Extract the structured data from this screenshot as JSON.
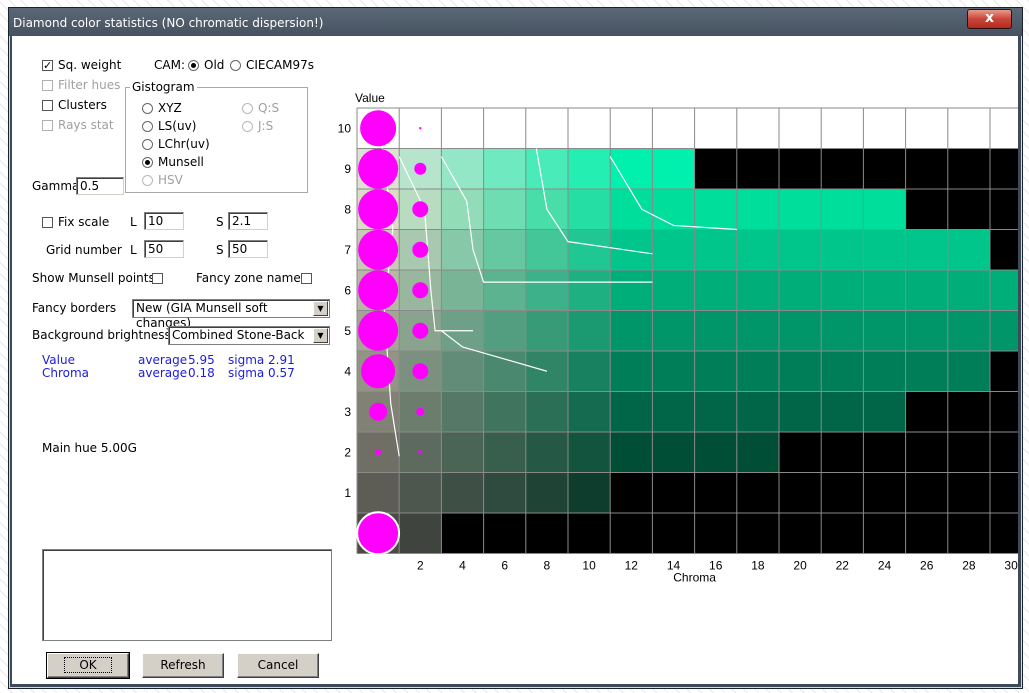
{
  "window": {
    "title": "Diamond color statistics (NO chromatic dispersion!)",
    "close_glyph": "x"
  },
  "options": {
    "sq_weight": {
      "label": "Sq. weight",
      "checked": true
    },
    "filter_hues": {
      "label": "Filter hues",
      "checked": false,
      "disabled": true
    },
    "clusters": {
      "label": "Clusters",
      "checked": false
    },
    "rays_stat": {
      "label": "Rays stat",
      "checked": false,
      "disabled": true
    }
  },
  "cam": {
    "label": "CAM:",
    "options": [
      "Old",
      "CIECAM97s"
    ],
    "selected": "Old"
  },
  "gistogram": {
    "title": "Gistogram",
    "options": [
      {
        "label": "XYZ",
        "selected": false,
        "disabled": false
      },
      {
        "label": "Q:S",
        "selected": false,
        "disabled": true
      },
      {
        "label": "LS(uv)",
        "selected": false,
        "disabled": false
      },
      {
        "label": "J:S",
        "selected": false,
        "disabled": true
      },
      {
        "label": "LChr(uv)",
        "selected": false,
        "disabled": false
      },
      {
        "label": "Munsell",
        "selected": true,
        "disabled": false
      },
      {
        "label": "HSV",
        "selected": false,
        "disabled": true
      }
    ]
  },
  "gamma": {
    "label": "Gamma",
    "value": "0.5"
  },
  "fix_scale": {
    "label": "Fix scale",
    "checked": false,
    "l_label": "L",
    "l_value": "10",
    "s_label": "S",
    "s_value": "2.1"
  },
  "grid_number": {
    "label": "Grid number",
    "l_label": "L",
    "l_value": "50",
    "s_label": "S",
    "s_value": "50"
  },
  "show_munsell_points": {
    "label": "Show Munsell points",
    "checked": false
  },
  "fancy_zone_names": {
    "label": "Fancy zone names",
    "checked": false
  },
  "fancy_borders": {
    "label": "Fancy borders",
    "value": "New (GIA Munsell soft changes)"
  },
  "background_brightness": {
    "label": "Background brightness",
    "value": "Combined Stone-Back"
  },
  "stats": {
    "value": {
      "label": "Value",
      "average_label": "average",
      "average": "5.95",
      "sigma_label": "sigma",
      "sigma": "2.91"
    },
    "chroma": {
      "label": "Chroma",
      "average_label": "average",
      "average": "0.18",
      "sigma_label": "sigma",
      "sigma": "0.57"
    }
  },
  "main_hue": "Main hue 5.00G",
  "buttons": {
    "ok": "OK",
    "refresh": "Refresh",
    "cancel": "Cancel"
  },
  "colors": {
    "marker": "#ff00ff",
    "grid": "#8a8a8a",
    "curve": "#ffffff"
  },
  "chart_data": {
    "type": "heatmap",
    "xlabel": "Chroma",
    "ylabel": "Value",
    "x_ticks": [
      "2",
      "4",
      "6",
      "8",
      "10",
      "12",
      "14",
      "16",
      "18",
      "20",
      "22",
      "24",
      "26",
      "28",
      "30"
    ],
    "y_ticks": [
      "1",
      "2",
      "3",
      "4",
      "5",
      "6",
      "7",
      "8",
      "9",
      "10"
    ],
    "xlim": [
      0,
      30
    ],
    "ylim": [
      0,
      10
    ],
    "grid": true,
    "rows": [
      {
        "value": 10,
        "last_chroma": 30,
        "color": "#ffffff"
      },
      {
        "value": 9,
        "last_chroma": 14,
        "color": "green"
      },
      {
        "value": 8,
        "last_chroma": 24,
        "color": "green"
      },
      {
        "value": 7,
        "last_chroma": 28,
        "color": "green"
      },
      {
        "value": 6,
        "last_chroma": 30,
        "color": "green"
      },
      {
        "value": 5,
        "last_chroma": 30,
        "color": "green"
      },
      {
        "value": 4,
        "last_chroma": 28,
        "color": "green"
      },
      {
        "value": 3,
        "last_chroma": 24,
        "color": "green"
      },
      {
        "value": 2,
        "last_chroma": 18,
        "color": "green"
      },
      {
        "value": 1,
        "last_chroma": 10,
        "color": "green"
      },
      {
        "value": 0,
        "last_chroma": 2,
        "color": "green"
      }
    ],
    "markers": [
      {
        "value": 10,
        "chroma": 0,
        "size": 0.9
      },
      {
        "value": 10,
        "chroma": 2,
        "size": 0.03
      },
      {
        "value": 9,
        "chroma": 0,
        "size": 1.0
      },
      {
        "value": 9,
        "chroma": 2,
        "size": 0.3
      },
      {
        "value": 8,
        "chroma": 0,
        "size": 1.0
      },
      {
        "value": 8,
        "chroma": 2,
        "size": 0.4
      },
      {
        "value": 7,
        "chroma": 0,
        "size": 1.0
      },
      {
        "value": 7,
        "chroma": 2,
        "size": 0.4
      },
      {
        "value": 6,
        "chroma": 0,
        "size": 1.0
      },
      {
        "value": 6,
        "chroma": 2,
        "size": 0.4
      },
      {
        "value": 5,
        "chroma": 0,
        "size": 1.0
      },
      {
        "value": 5,
        "chroma": 2,
        "size": 0.4
      },
      {
        "value": 4,
        "chroma": 0,
        "size": 0.85
      },
      {
        "value": 4,
        "chroma": 2,
        "size": 0.4
      },
      {
        "value": 3,
        "chroma": 0,
        "size": 0.45
      },
      {
        "value": 3,
        "chroma": 2,
        "size": 0.2
      },
      {
        "value": 2,
        "chroma": 0,
        "size": 0.15
      },
      {
        "value": 2,
        "chroma": 2,
        "size": 0.1
      },
      {
        "value": 0,
        "chroma": 0,
        "size": 1.05
      }
    ],
    "boundary_curves": [
      [
        [
          1.2,
          9.5
        ],
        [
          1.7,
          7.5
        ],
        [
          1.3,
          5.5
        ],
        [
          1.6,
          3.2
        ],
        [
          2.0,
          1.9
        ]
      ],
      [
        [
          2.0,
          9.3
        ],
        [
          3.2,
          8.0
        ],
        [
          3.5,
          6.0
        ],
        [
          3.7,
          5.0
        ],
        [
          5.5,
          5.0
        ]
      ],
      [
        [
          4.0,
          9.3
        ],
        [
          5.2,
          8.2
        ],
        [
          5.5,
          7.0
        ],
        [
          6.0,
          6.2
        ],
        [
          14.0,
          6.2
        ]
      ],
      [
        [
          8.5,
          9.5
        ],
        [
          9.0,
          8.0
        ],
        [
          10.0,
          7.2
        ],
        [
          14.0,
          6.9
        ]
      ],
      [
        [
          12.0,
          9.3
        ],
        [
          13.5,
          8.0
        ],
        [
          15.0,
          7.6
        ],
        [
          18.0,
          7.5
        ]
      ],
      [
        [
          4.0,
          5.0
        ],
        [
          5.0,
          4.6
        ],
        [
          7.0,
          4.3
        ],
        [
          9.0,
          4.0
        ]
      ]
    ]
  }
}
